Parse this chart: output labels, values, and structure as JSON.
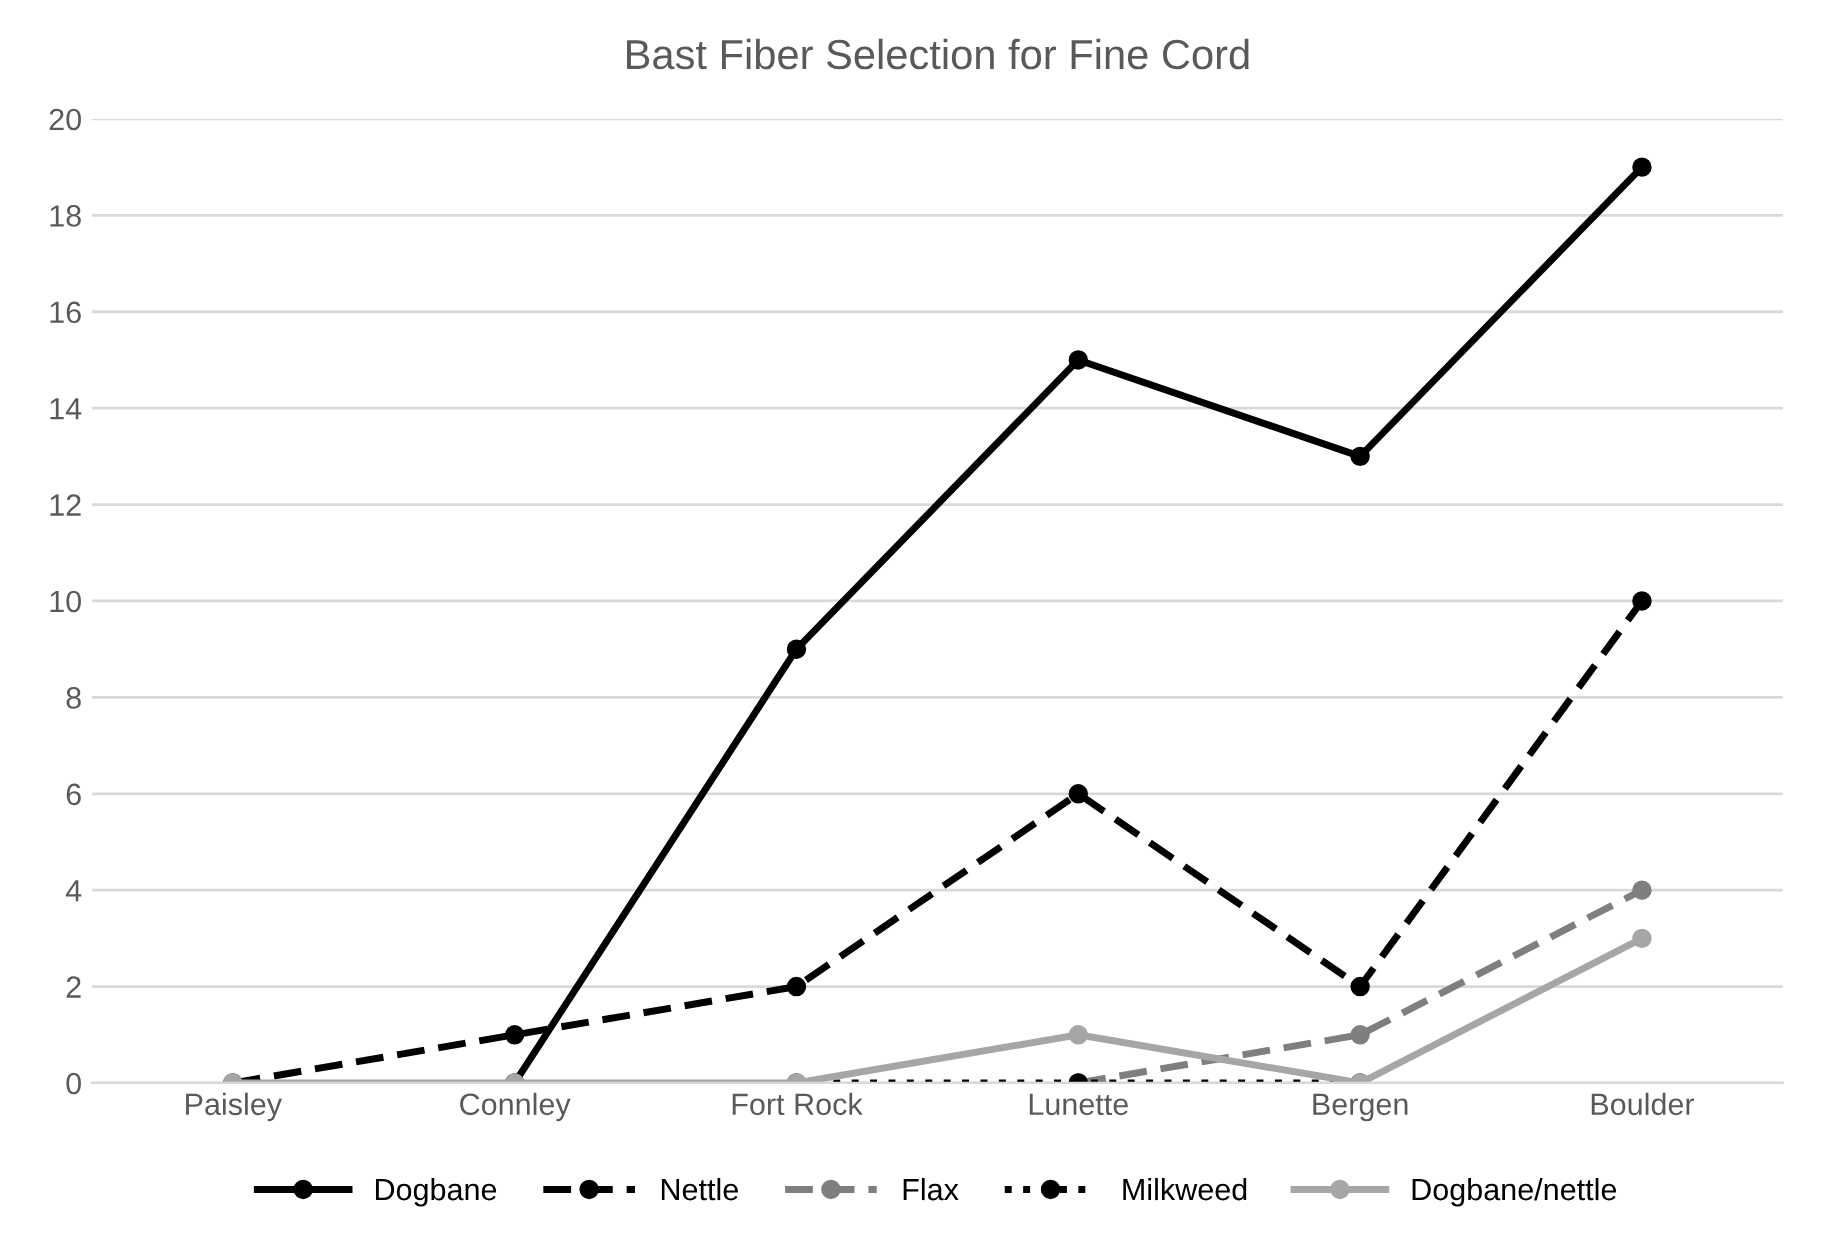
{
  "chart_data": {
    "type": "line",
    "title": "Bast Fiber Selection for Fine Cord",
    "categories": [
      "Paisley",
      "Connley",
      "Fort Rock",
      "Lunette",
      "Bergen",
      "Boulder"
    ],
    "series": [
      {
        "name": "Dogbane",
        "color": "#000000",
        "line_style": "solid",
        "values": [
          null,
          0,
          9,
          15,
          13,
          19
        ]
      },
      {
        "name": "Nettle",
        "color": "#000000",
        "line_style": "dashed",
        "values": [
          0,
          1,
          2,
          6,
          2,
          10
        ]
      },
      {
        "name": "Flax",
        "color": "#7f7f7f",
        "line_style": "dashed",
        "values": [
          null,
          null,
          null,
          0,
          1,
          4
        ]
      },
      {
        "name": "Milkweed",
        "color": "#000000",
        "line_style": "dotted",
        "values": [
          null,
          null,
          0,
          0,
          0,
          null
        ]
      },
      {
        "name": "Dogbane/nettle",
        "color": "#a6a6a6",
        "line_style": "solid",
        "values": [
          0,
          0,
          0,
          1,
          0,
          3
        ]
      }
    ],
    "ylim": [
      0,
      20
    ],
    "yticks": [
      0,
      2,
      4,
      6,
      8,
      10,
      12,
      14,
      16,
      18,
      20
    ],
    "grid": "y",
    "legend": "bottom",
    "marker": "circle"
  }
}
